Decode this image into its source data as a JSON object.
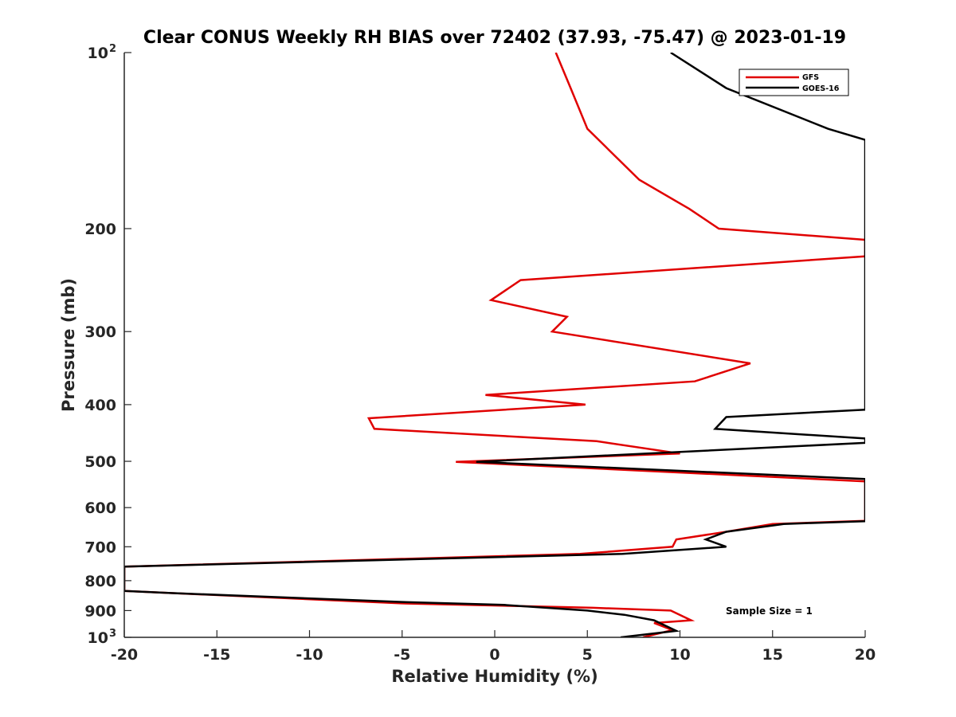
{
  "chart_data": {
    "type": "line",
    "title": "Clear CONUS Weekly RH BIAS over 72402 (37.93, -75.47) @ 2023-01-19",
    "xlabel": "Relative Humidity (%)",
    "ylabel": "Pressure (mb)",
    "xlim": [
      -20,
      20
    ],
    "ylim": [
      100,
      1000
    ],
    "yscale": "log",
    "y_reversed": true,
    "x_ticks": [
      -20,
      -15,
      -10,
      -5,
      0,
      5,
      10,
      15,
      20
    ],
    "x_tick_labels": [
      "-20",
      "-15",
      "-10",
      "-5",
      "0",
      "5",
      "10",
      "15",
      "20"
    ],
    "y_ticks": [
      100,
      200,
      300,
      400,
      500,
      600,
      700,
      800,
      900,
      1000
    ],
    "y_tick_labels": [
      {
        "base": "10",
        "exp": "2"
      },
      {
        "base": "200",
        "exp": ""
      },
      {
        "base": "300",
        "exp": ""
      },
      {
        "base": "400",
        "exp": ""
      },
      {
        "base": "500",
        "exp": ""
      },
      {
        "base": "600",
        "exp": ""
      },
      {
        "base": "700",
        "exp": ""
      },
      {
        "base": "800",
        "exp": ""
      },
      {
        "base": "900",
        "exp": ""
      },
      {
        "base": "10",
        "exp": "3"
      }
    ],
    "grid": false,
    "legend_position": "top-right",
    "annotation": "Sample Size = 1",
    "series": [
      {
        "name": "GFS",
        "color": "#e00000",
        "points": [
          [
            3.3,
            100
          ],
          [
            4.1,
            115
          ],
          [
            5.0,
            135
          ],
          [
            7.8,
            165
          ],
          [
            10.5,
            185
          ],
          [
            12.1,
            200
          ],
          [
            20.0,
            209
          ],
          [
            20.0,
            223
          ],
          [
            1.4,
            245
          ],
          [
            -0.2,
            265
          ],
          [
            3.9,
            283
          ],
          [
            3.1,
            300
          ],
          [
            13.8,
            340
          ],
          [
            10.8,
            365
          ],
          [
            -0.5,
            385
          ],
          [
            4.9,
            400
          ],
          [
            -6.8,
            422
          ],
          [
            -6.5,
            440
          ],
          [
            5.5,
            462
          ],
          [
            10.0,
            485
          ],
          [
            -2.1,
            501
          ],
          [
            20.0,
            541
          ],
          [
            20.0,
            632
          ],
          [
            15.0,
            640
          ],
          [
            12.5,
            660
          ],
          [
            9.8,
            680
          ],
          [
            9.6,
            700
          ],
          [
            4.6,
            720
          ],
          [
            -20.0,
            757
          ],
          [
            -20.0,
            833
          ],
          [
            -17.5,
            840
          ],
          [
            -5.0,
            875
          ],
          [
            5.3,
            890
          ],
          [
            9.5,
            900
          ],
          [
            10.6,
            935
          ],
          [
            8.6,
            945
          ],
          [
            9.6,
            972
          ],
          [
            8.0,
            1000
          ]
        ]
      },
      {
        "name": "GOES-16",
        "color": "#000000",
        "points": [
          [
            9.5,
            100
          ],
          [
            12.5,
            115
          ],
          [
            18.0,
            135
          ],
          [
            20.0,
            141
          ],
          [
            20.0,
            408
          ],
          [
            12.5,
            420
          ],
          [
            11.9,
            440
          ],
          [
            20.0,
            457
          ],
          [
            20.0,
            465
          ],
          [
            -1.0,
            501
          ],
          [
            20.0,
            536
          ],
          [
            20.0,
            633
          ],
          [
            15.6,
            640
          ],
          [
            12.5,
            660
          ],
          [
            11.4,
            680
          ],
          [
            12.5,
            700
          ],
          [
            6.9,
            720
          ],
          [
            -20.0,
            757
          ],
          [
            -20.0,
            833
          ],
          [
            -17.5,
            840
          ],
          [
            -5.0,
            870
          ],
          [
            0.5,
            880
          ],
          [
            5.0,
            900
          ],
          [
            7.0,
            915
          ],
          [
            8.6,
            935
          ],
          [
            9.8,
            975
          ],
          [
            6.8,
            1000
          ]
        ]
      }
    ]
  }
}
